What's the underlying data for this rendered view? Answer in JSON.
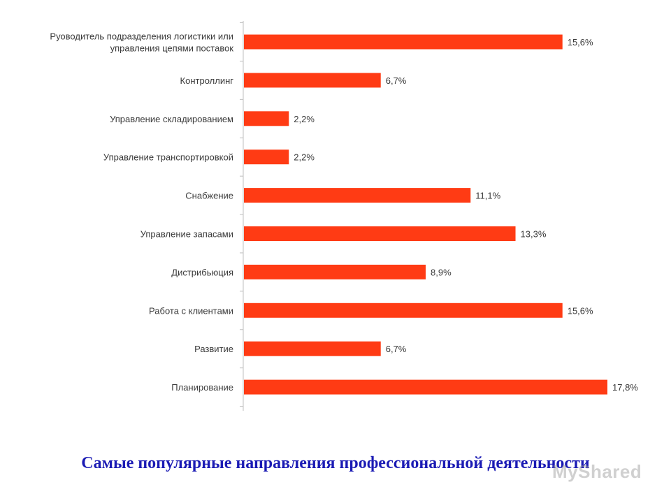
{
  "chart_data": {
    "type": "bar",
    "orientation": "horizontal",
    "categories": [
      [
        "Руоводитель подразделения логистики или",
        "управления цепями поставок"
      ],
      [
        "Контроллинг"
      ],
      [
        "Управление складированием"
      ],
      [
        "Управление транспортировкой"
      ],
      [
        "Снабжение"
      ],
      [
        "Управление запасами"
      ],
      [
        "Дистрибьюция"
      ],
      [
        "Работа с клиентами"
      ],
      [
        "Развитие"
      ],
      [
        "Планирование"
      ]
    ],
    "values": [
      15.6,
      6.7,
      2.2,
      2.2,
      11.1,
      13.3,
      8.9,
      15.6,
      6.7,
      17.8
    ],
    "value_labels": [
      "15,6%",
      "6,7%",
      "2,2%",
      "2,2%",
      "11,1%",
      "13,3%",
      "8,9%",
      "15,6%",
      "6,7%",
      "17,8%"
    ],
    "bar_color": "#ff3b14",
    "axis_color": "#bfbfbf",
    "grid": false,
    "legend": "none"
  },
  "caption": "Самые популярные направления профессиональной деятельности",
  "watermark": "MyShared",
  "colors": {
    "caption": "#1b1bb4"
  }
}
